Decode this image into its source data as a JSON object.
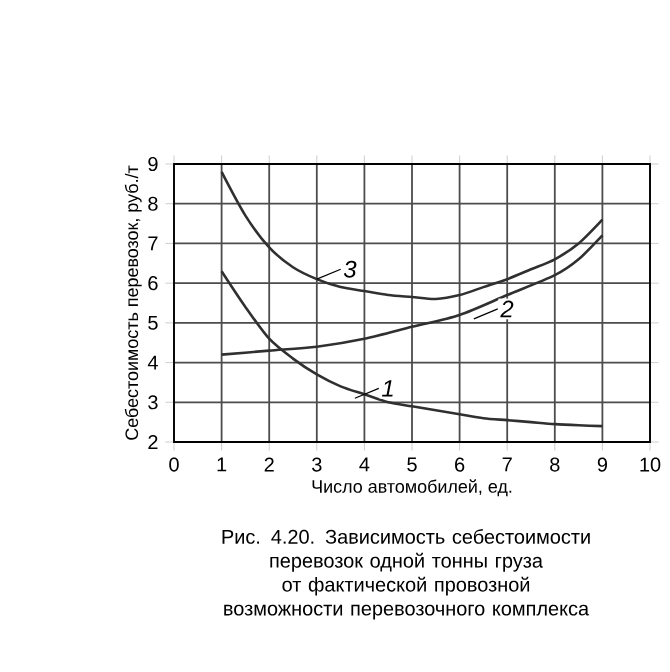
{
  "chart_data": {
    "type": "line",
    "xlabel": "Число автомобилей, ед.",
    "ylabel": "Себестоимость перевозок, руб./т",
    "xlim": [
      0,
      10
    ],
    "ylim": [
      2,
      9
    ],
    "xticks": [
      0,
      1,
      2,
      3,
      4,
      5,
      6,
      7,
      8,
      9,
      10
    ],
    "yticks": [
      2,
      3,
      4,
      5,
      6,
      7,
      8,
      9
    ],
    "grid": true,
    "marker": "none",
    "line_style": "solid",
    "series": [
      {
        "color": "#303030",
        "x": [
          1,
          1.5,
          2,
          2.5,
          3,
          3.5,
          4,
          4.5,
          5,
          5.5,
          6,
          6.5,
          7,
          7.5,
          8,
          8.5,
          9
        ],
        "values": [
          6.3,
          5.4,
          4.6,
          4.1,
          3.7,
          3.4,
          3.2,
          3.0,
          2.9,
          2.8,
          2.7,
          2.6,
          2.55,
          2.5,
          2.45,
          2.42,
          2.4
        ]
      },
      {
        "color": "#303030",
        "x": [
          1,
          2,
          3,
          4,
          5,
          6,
          7,
          8,
          8.5,
          9
        ],
        "values": [
          4.2,
          4.3,
          4.4,
          4.6,
          4.9,
          5.2,
          5.7,
          6.2,
          6.6,
          7.2
        ]
      },
      {
        "color": "#303030",
        "x": [
          1,
          1.5,
          2,
          2.5,
          3,
          3.5,
          4,
          4.5,
          5,
          5.5,
          6,
          6.5,
          7,
          7.5,
          8,
          8.5,
          9
        ],
        "values": [
          8.8,
          7.7,
          6.9,
          6.4,
          6.1,
          5.9,
          5.8,
          5.7,
          5.65,
          5.6,
          5.7,
          5.9,
          6.1,
          6.35,
          6.6,
          7.0,
          7.6
        ]
      }
    ],
    "annotations": [
      {
        "text": "1",
        "x": 3.8,
        "y": 3.1
      },
      {
        "text": "2",
        "x": 6.3,
        "y": 5.1
      },
      {
        "text": "3",
        "x": 3,
        "y": 6.1
      },
      "Рис. 4.20. Зависимость себестоимости перевозок одной тонны груза от фактической провозной возможности перевозочного комплекса"
    ]
  }
}
